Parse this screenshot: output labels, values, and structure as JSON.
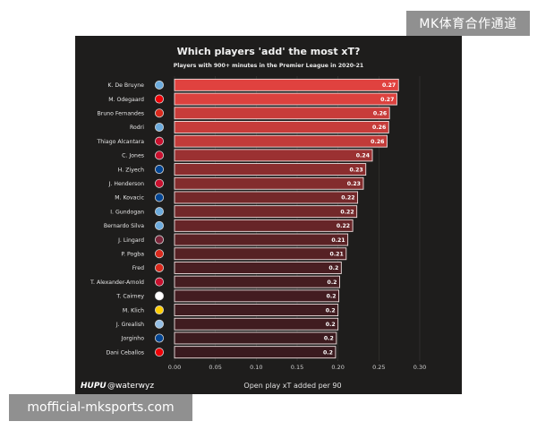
{
  "watermarks": {
    "top": "MK体育合作通道",
    "bottom": "mofficial-mksports.com"
  },
  "footer": {
    "brand": "HUPU",
    "handle": "@waterwyz"
  },
  "chart_data": {
    "type": "bar",
    "orientation": "horizontal",
    "title": "Which players 'add' the most xT?",
    "subtitle": "Players with 900+ minutes in the Premier League in 2020-21",
    "xlabel": "Open play xT added per 90",
    "ylabel": "",
    "xlim": [
      0,
      0.3
    ],
    "xticks": [
      "0.00",
      "0.05",
      "0.10",
      "0.15",
      "0.20",
      "0.25",
      "0.30"
    ],
    "grid": true,
    "legend": "none",
    "colors": {
      "high": "#e0423f",
      "low": "#3a1a1f",
      "border": "#f0e0e0"
    },
    "categories": [
      "K. De Bruyne",
      "M. Odegaard",
      "Bruno Fernandes",
      "Rodri",
      "Thiago Alcantara",
      "C. Jones",
      "H. Ziyech",
      "J. Henderson",
      "M. Kovacic",
      "I. Gundogan",
      "Bernardo Silva",
      "J. Lingard",
      "P. Pogba",
      "Fred",
      "T. Alexander-Arnold",
      "T. Cairney",
      "M. Klich",
      "J. Grealish",
      "Jorginho",
      "Dani Ceballos"
    ],
    "values": [
      0.274,
      0.272,
      0.263,
      0.262,
      0.26,
      0.242,
      0.234,
      0.231,
      0.224,
      0.223,
      0.218,
      0.212,
      0.21,
      0.204,
      0.202,
      0.201,
      0.2,
      0.2,
      0.198,
      0.197
    ],
    "value_labels": [
      "0.27",
      "0.27",
      "0.26",
      "0.26",
      "0.26",
      "0.24",
      "0.23",
      "0.23",
      "0.22",
      "0.22",
      "0.22",
      "0.21",
      "0.21",
      "0.2",
      "0.2",
      "0.2",
      "0.2",
      "0.2",
      "0.2",
      "0.2"
    ],
    "club_badges": [
      {
        "club": "manchester-city",
        "color": "#6cabdd"
      },
      {
        "club": "arsenal",
        "color": "#ef0107"
      },
      {
        "club": "manchester-united",
        "color": "#da291c"
      },
      {
        "club": "manchester-city",
        "color": "#6cabdd"
      },
      {
        "club": "liverpool",
        "color": "#c8102e"
      },
      {
        "club": "liverpool",
        "color": "#c8102e"
      },
      {
        "club": "chelsea",
        "color": "#034694"
      },
      {
        "club": "liverpool",
        "color": "#c8102e"
      },
      {
        "club": "chelsea",
        "color": "#034694"
      },
      {
        "club": "manchester-city",
        "color": "#6cabdd"
      },
      {
        "club": "manchester-city",
        "color": "#6cabdd"
      },
      {
        "club": "west-ham",
        "color": "#7a263a"
      },
      {
        "club": "manchester-united",
        "color": "#da291c"
      },
      {
        "club": "manchester-united",
        "color": "#da291c"
      },
      {
        "club": "liverpool",
        "color": "#c8102e"
      },
      {
        "club": "fulham",
        "color": "#ffffff"
      },
      {
        "club": "leeds",
        "color": "#ffcd00"
      },
      {
        "club": "aston-villa",
        "color": "#95bfe5"
      },
      {
        "club": "chelsea",
        "color": "#034694"
      },
      {
        "club": "arsenal",
        "color": "#ef0107"
      }
    ]
  }
}
